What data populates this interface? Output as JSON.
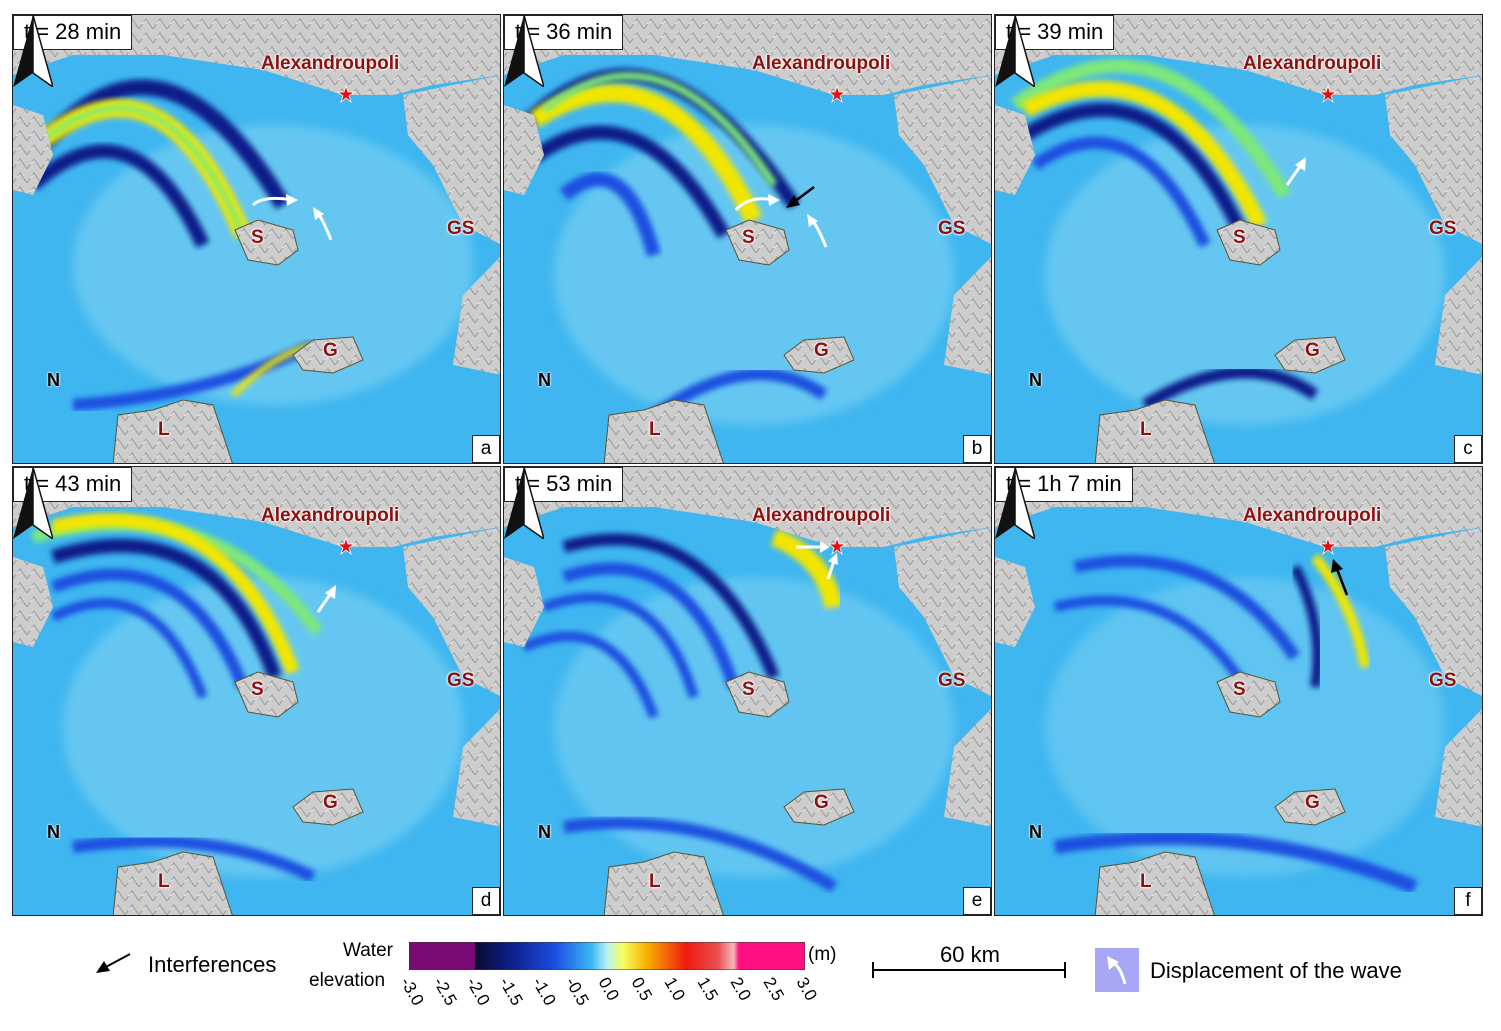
{
  "panels": [
    {
      "time": "t = 28 min",
      "letter": "a"
    },
    {
      "time": "t = 36 min",
      "letter": "b"
    },
    {
      "time": "t = 39 min",
      "letter": "c"
    },
    {
      "time": "t = 43 min",
      "letter": "d"
    },
    {
      "time": "t = 53 min",
      "letter": "e"
    },
    {
      "time": "t = 1h 7 min",
      "letter": "f"
    }
  ],
  "places": {
    "city": "Alexandroupoli",
    "island_s": "S",
    "island_g": "G",
    "island_l": "L",
    "region_gs": "GS",
    "north": "N"
  },
  "legend": {
    "interferences": "Interferences",
    "water_line1": "Water",
    "water_line2": "elevation",
    "unit": "(m)",
    "ticks": [
      "-3.0",
      "-2.5",
      "-2.0",
      "-1.5",
      "-1.0",
      "-0.5",
      "0.0",
      "0.5",
      "1.0",
      "1.5",
      "2.0",
      "2.5",
      "3.0"
    ],
    "scale": "60 km",
    "displacement": "Displacement of the wave"
  },
  "colors": {
    "sea": "#3fb6f0",
    "land": "#cfcfcf",
    "crest": "#f2e600",
    "trough": "#0a1a8a",
    "city_marker": "#e01010",
    "label": "#8b1010"
  },
  "icons": {
    "north_arrow": "north-arrow-icon",
    "city": "star-icon",
    "interference": "arrow-icon",
    "displacement": "curved-arrow-icon"
  }
}
